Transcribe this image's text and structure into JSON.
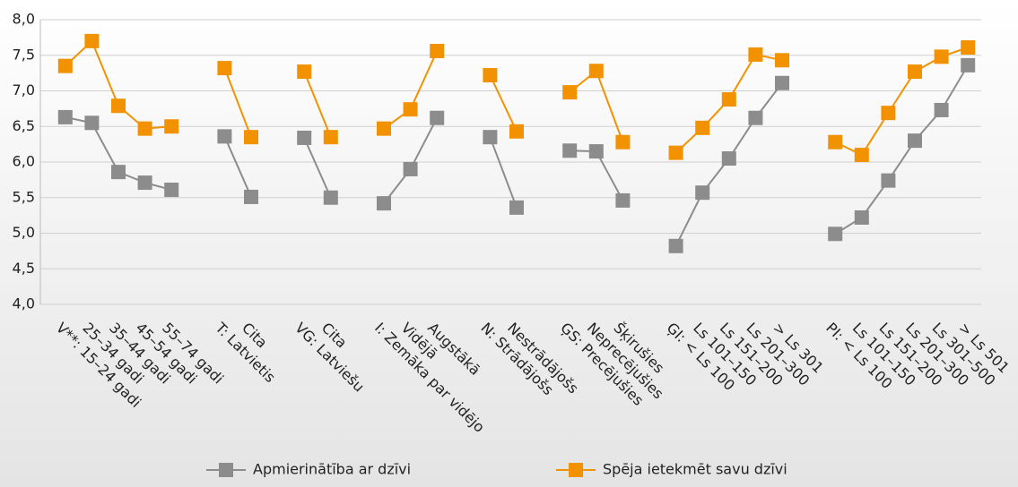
{
  "chart_data": {
    "type": "line",
    "categories": [
      "V**: 15–24 gadi",
      "25–34 gadi",
      "35–44 gadi",
      "45–54 gadi",
      "55–74 gadi",
      null,
      "T: Latvietis",
      "Cita",
      null,
      "VG: Latviešu",
      "Cita",
      null,
      "I: Zemāka par vidējo",
      "Vidējā",
      "Augstākā",
      null,
      "N: Strādājošs",
      "Nestrādājošs",
      null,
      "ĢS: Precējušies",
      "Neprecējušies",
      "Šķirušies",
      null,
      "ĢI: < Ls 100",
      "Ls 101–150",
      "Ls 151–200",
      "Ls 201–300",
      "> Ls 301",
      null,
      "PI: < Ls 100",
      "Ls 101–150",
      "Ls 151–200",
      "Ls 201–300",
      "Ls 301–500",
      "> Ls 501"
    ],
    "series": [
      {
        "name": "Apmierinātība ar dzīvi",
        "color": "#8c8c8c",
        "values": [
          6.63,
          6.55,
          5.86,
          5.71,
          5.61,
          null,
          6.36,
          5.51,
          null,
          6.34,
          5.5,
          null,
          5.42,
          5.9,
          6.62,
          null,
          6.35,
          5.36,
          null,
          6.16,
          6.15,
          5.46,
          null,
          4.82,
          5.57,
          6.05,
          6.62,
          7.11,
          null,
          4.99,
          5.22,
          5.74,
          6.3,
          6.73,
          7.36
        ]
      },
      {
        "name": "Spēja ietekmēt savu dzīvi",
        "color": "#f39200",
        "values": [
          7.35,
          7.7,
          6.79,
          6.47,
          6.5,
          null,
          7.32,
          6.35,
          null,
          7.27,
          6.35,
          null,
          6.47,
          6.74,
          7.56,
          null,
          7.22,
          6.43,
          null,
          6.98,
          7.28,
          6.28,
          null,
          6.13,
          6.48,
          6.88,
          7.51,
          7.43,
          null,
          6.28,
          6.1,
          6.69,
          7.27,
          7.48,
          7.61
        ]
      }
    ],
    "ylim": [
      4,
      8
    ],
    "yticks": [
      {
        "value": 4,
        "label": "4,0"
      },
      {
        "value": 4.5,
        "label": "4,5"
      },
      {
        "value": 5,
        "label": "5,0"
      },
      {
        "value": 5.5,
        "label": "5,5"
      },
      {
        "value": 6,
        "label": "6,0"
      },
      {
        "value": 6.5,
        "label": "6,5"
      },
      {
        "value": 7,
        "label": "7,0"
      },
      {
        "value": 7.5,
        "label": "7,5"
      },
      {
        "value": 8,
        "label": "8,0"
      }
    ],
    "grid": true
  }
}
